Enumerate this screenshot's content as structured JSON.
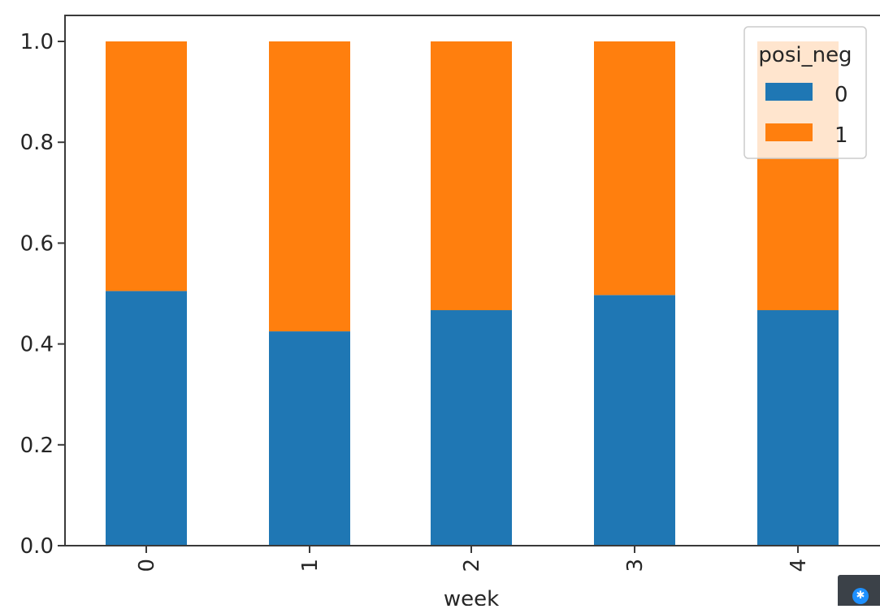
{
  "chart_data": {
    "type": "bar",
    "stacked": true,
    "categories": [
      "0",
      "1",
      "2",
      "3",
      "4"
    ],
    "series": [
      {
        "name": "0",
        "color": "#1f77b4",
        "values": [
          0.505,
          0.425,
          0.467,
          0.497,
          0.467
        ]
      },
      {
        "name": "1",
        "color": "#ff7f0e",
        "values": [
          0.495,
          0.575,
          0.533,
          0.503,
          0.533
        ]
      }
    ],
    "title": "",
    "xlabel": "week",
    "ylabel": "",
    "ylim": [
      0,
      1.05
    ],
    "yticks": [
      "0.0",
      "0.2",
      "0.4",
      "0.6",
      "0.8",
      "1.0"
    ],
    "ytick_values": [
      0,
      0.2,
      0.4,
      0.6,
      0.8,
      1.0
    ],
    "xtick_rotation": "vertical",
    "grid": false,
    "legend": {
      "title": "posi_neg",
      "placement": "top-right"
    }
  },
  "corner_widget": {
    "icon": "bluetooth-icon",
    "glyph": "✱"
  }
}
